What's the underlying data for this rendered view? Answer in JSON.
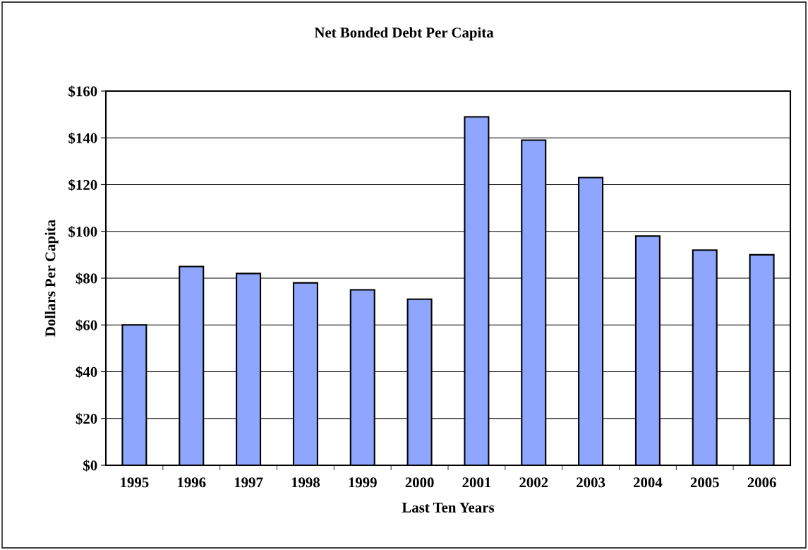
{
  "chart_data": {
    "type": "bar",
    "title": "Net Bonded Debt Per Capita",
    "xlabel": "Last Ten Years",
    "ylabel": "Dollars Per Capita",
    "categories": [
      "1995",
      "1996",
      "1997",
      "1998",
      "1999",
      "2000",
      "2001",
      "2002",
      "2003",
      "2004",
      "2005",
      "2006"
    ],
    "values": [
      60,
      85,
      82,
      78,
      75,
      71,
      149,
      139,
      123,
      98,
      92,
      90
    ],
    "color": "#8fa6ff",
    "ylim": [
      0,
      160
    ],
    "yticks": [
      {
        "value": 0,
        "label": "$0"
      },
      {
        "value": 20,
        "label": "$20"
      },
      {
        "value": 40,
        "label": "$40"
      },
      {
        "value": 60,
        "label": "$60"
      },
      {
        "value": 80,
        "label": "$80"
      },
      {
        "value": 100,
        "label": "$100"
      },
      {
        "value": 120,
        "label": "$120"
      },
      {
        "value": 140,
        "label": "$140"
      },
      {
        "value": 160,
        "label": "$160"
      }
    ],
    "grid": "y",
    "legend": false
  }
}
